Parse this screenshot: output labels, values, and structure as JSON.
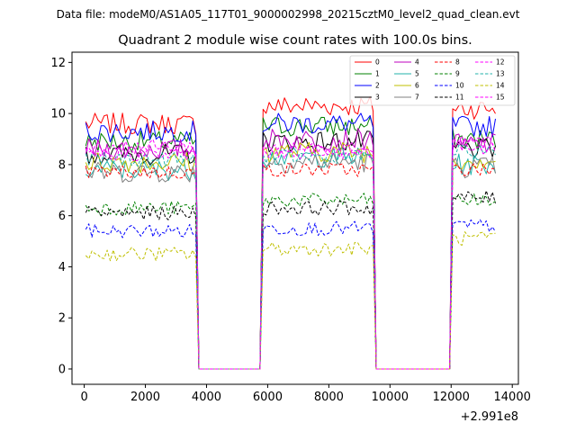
{
  "figure": {
    "suptitle": "Data file: modeM0/AS1A05_117T01_9000002998_20215cztM0_level2_quad_clean.evt"
  },
  "chart_data": {
    "type": "line",
    "title": "Quadrant 2 module wise count rates with 100.0s bins.",
    "xlabel": "",
    "ylabel": "",
    "x_offset_label": "+2.991e8",
    "xlim": [
      -400,
      14200
    ],
    "ylim": [
      -0.6,
      12.4
    ],
    "xticks": [
      0,
      2000,
      4000,
      6000,
      8000,
      10000,
      12000,
      14000
    ],
    "xtick_labels": [
      "0",
      "2000",
      "4000",
      "6000",
      "8000",
      "10000",
      "12000",
      "14000"
    ],
    "yticks": [
      0,
      2,
      4,
      6,
      8,
      10,
      12
    ],
    "ytick_labels": [
      "0",
      "2",
      "4",
      "6",
      "8",
      "10",
      "12"
    ],
    "legend_position": "top-right",
    "bin_seconds": 100,
    "time_start": 50,
    "segments": [
      {
        "start": 50,
        "end": 3650
      },
      {
        "start": 5850,
        "end": 9450
      },
      {
        "start": 12050,
        "end": 13450
      }
    ],
    "series": [
      {
        "name": "0",
        "color": "#ff0000",
        "style": "solid",
        "means": [
          9.6,
          10.3,
          10.2
        ]
      },
      {
        "name": "1",
        "color": "#008000",
        "style": "solid",
        "means": [
          8.9,
          9.5,
          9.0
        ]
      },
      {
        "name": "2",
        "color": "#0000ff",
        "style": "solid",
        "means": [
          9.3,
          9.6,
          9.5
        ]
      },
      {
        "name": "3",
        "color": "#000000",
        "style": "solid",
        "means": [
          8.4,
          8.9,
          8.6
        ]
      },
      {
        "name": "4",
        "color": "#bf00bf",
        "style": "solid",
        "means": [
          8.6,
          9.0,
          8.8
        ]
      },
      {
        "name": "5",
        "color": "#20b2aa",
        "style": "solid",
        "means": [
          7.8,
          8.3,
          8.0
        ]
      },
      {
        "name": "6",
        "color": "#bfbf00",
        "style": "solid",
        "means": [
          8.1,
          8.5,
          8.2
        ]
      },
      {
        "name": "7",
        "color": "#808080",
        "style": "solid",
        "means": [
          7.7,
          8.1,
          7.9
        ]
      },
      {
        "name": "8",
        "color": "#ff0000",
        "style": "dashed",
        "means": [
          7.7,
          7.8,
          7.8
        ]
      },
      {
        "name": "9",
        "color": "#008000",
        "style": "dashed",
        "means": [
          6.3,
          6.6,
          6.6
        ]
      },
      {
        "name": "10",
        "color": "#0000ff",
        "style": "dashed",
        "means": [
          5.4,
          5.5,
          5.6
        ]
      },
      {
        "name": "11",
        "color": "#000000",
        "style": "dashed",
        "means": [
          6.1,
          6.3,
          6.7
        ]
      },
      {
        "name": "12",
        "color": "#ff00ff",
        "style": "dashed",
        "means": [
          8.7,
          8.6,
          8.9
        ]
      },
      {
        "name": "13",
        "color": "#20b2aa",
        "style": "dashed",
        "means": [
          8.2,
          8.3,
          8.5
        ]
      },
      {
        "name": "14",
        "color": "#bfbf00",
        "style": "dashed",
        "means": [
          4.5,
          4.7,
          5.1
        ]
      },
      {
        "name": "15",
        "color": "#ff00ff",
        "style": "dashed",
        "means": [
          8.4,
          8.5,
          8.7
        ]
      }
    ]
  }
}
